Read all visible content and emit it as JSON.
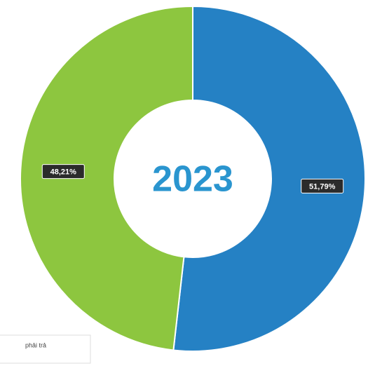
{
  "chart_data": {
    "type": "donut",
    "center_label": "2023",
    "values": [
      51.79,
      48.21
    ],
    "value_labels": [
      "51,79%",
      "48,21%"
    ],
    "colors": [
      "#2581c4",
      "#8dc63f"
    ],
    "legend_fragment": "phải trả"
  }
}
